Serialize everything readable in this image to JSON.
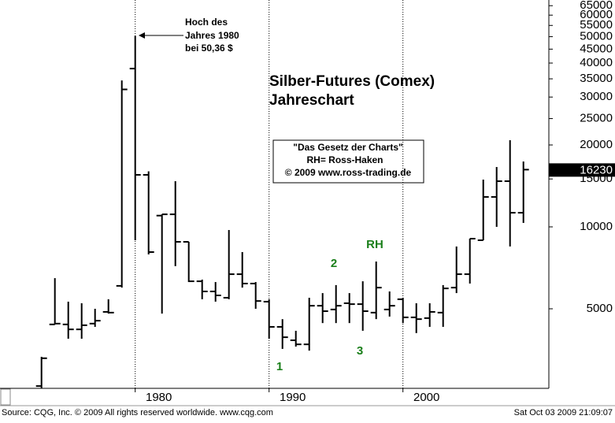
{
  "chart_data": {
    "type": "ohlc",
    "title": "Silber-Futures (Comex)",
    "subtitle": "Jahreschart",
    "info_box": [
      "\"Das Gesetz der Charts\"",
      "RH= Ross-Haken",
      "© 2009  www.ross-trading.de"
    ],
    "annotation": [
      "Hoch des",
      "Jahres 1980",
      "bei 50,36 $"
    ],
    "wave_labels": [
      "1",
      "2",
      "3",
      "RH"
    ],
    "source": "Source: CQG, Inc. © 2009 All rights reserved worldwide. www.cqg.com",
    "timestamp": "Sat Oct 03 2009 21:09:07",
    "last_price": 16230,
    "log_scale": true,
    "color": "#000000",
    "x": [
      1973,
      1974,
      1975,
      1976,
      1977,
      1978,
      1979,
      1980,
      1981,
      1982,
      1983,
      1984,
      1985,
      1986,
      1987,
      1988,
      1989,
      1990,
      1991,
      1992,
      1993,
      1994,
      1995,
      1996,
      1997,
      1998,
      1999,
      2000,
      2001,
      2002,
      2003,
      2004,
      2005,
      2006,
      2007,
      2008,
      2009
    ],
    "open": [
      2600,
      4380,
      4380,
      4200,
      4410,
      4870,
      6070,
      38170,
      15530,
      11000,
      11120,
      8810,
      6310,
      5790,
      5490,
      6700,
      6190,
      5310,
      4290,
      3830,
      3700,
      5130,
      4970,
      5240,
      5200,
      4840,
      4970,
      5420,
      4650,
      4620,
      4840,
      5980,
      6700,
      8930,
      12880,
      14720,
      11270
    ],
    "high": [
      3330,
      6480,
      5310,
      5240,
      5000,
      5420,
      34530,
      50360,
      16000,
      11120,
      14720,
      8810,
      6400,
      6270,
      9740,
      8080,
      6270,
      5420,
      4580,
      4150,
      5490,
      5710,
      6110,
      5710,
      6310,
      7460,
      5790,
      5490,
      5240,
      5240,
      6110,
      8470,
      9050,
      14920,
      16600,
      20820,
      17390
    ],
    "low": [
      2550,
      4380,
      3880,
      3880,
      4290,
      4800,
      5980,
      8930,
      7920,
      4800,
      7170,
      6270,
      5420,
      5310,
      5420,
      5980,
      5000,
      3880,
      3560,
      3630,
      3510,
      4430,
      4430,
      4430,
      4150,
      4580,
      4680,
      4430,
      4070,
      4290,
      4290,
      5710,
      6190,
      8930,
      10000,
      8470,
      10340
    ],
    "close": [
      3290,
      4410,
      4200,
      4350,
      4520,
      4840,
      32000,
      15530,
      8080,
      11120,
      8810,
      6310,
      5790,
      5600,
      6700,
      6190,
      5340,
      4290,
      3930,
      3700,
      5130,
      4900,
      5130,
      5200,
      4900,
      5980,
      5130,
      4650,
      4580,
      4870,
      5940,
      6700,
      9050,
      12880,
      14720,
      11270,
      16230
    ],
    "xlim": [
      1969.9,
      2010.9
    ],
    "xticks": [
      1980,
      1990,
      2000
    ],
    "ylim": [
      2550,
      68200
    ],
    "yticks": [
      5000,
      10000,
      15000,
      20000,
      25000,
      30000,
      35000,
      40000,
      45000,
      50000,
      55000,
      60000,
      65000
    ]
  }
}
